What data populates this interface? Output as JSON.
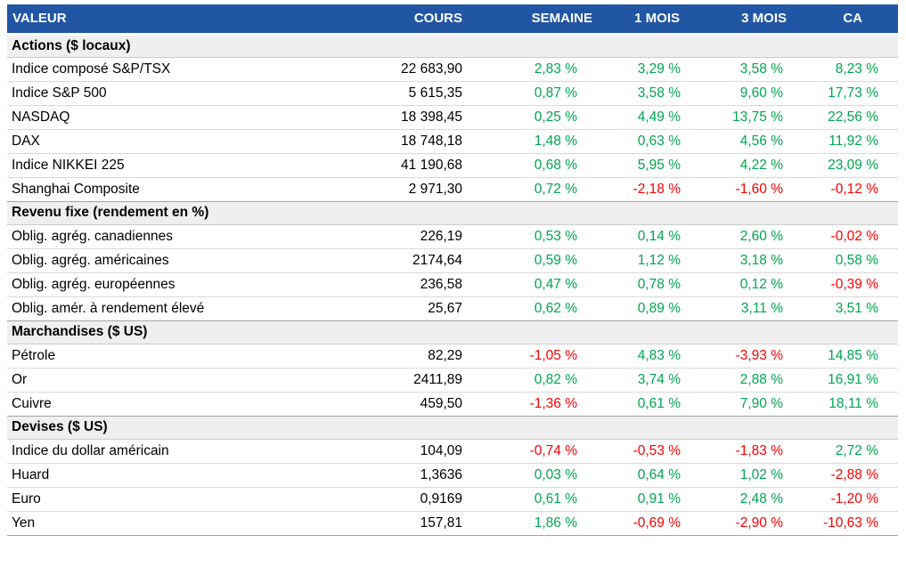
{
  "colors": {
    "header_bg": "#2156a4",
    "header_text": "#ffffff",
    "positive_green": "#00a651",
    "negative_red": "#fe0000",
    "section_bg": "#efefef"
  },
  "chart_data": {
    "type": "table",
    "columns": [
      "VALEUR",
      "COURS",
      "SEMAINE",
      "1 MOIS",
      "3 MOIS",
      "CA"
    ],
    "sections": [
      {
        "label": "Actions ($ locaux)",
        "rows": [
          [
            "Indice composé S&P/TSX",
            "22 683,90",
            "2,83 %",
            "3,29 %",
            "3,58 %",
            "8,23 %"
          ],
          [
            "Indice S&P 500",
            "5 615,35",
            "0,87 %",
            "3,58 %",
            "9,60 %",
            "17,73 %"
          ],
          [
            "NASDAQ",
            "18 398,45",
            "0,25 %",
            "4,49 %",
            "13,75 %",
            "22,56 %"
          ],
          [
            "DAX",
            "18 748,18",
            "1,48 %",
            "0,63 %",
            "4,56 %",
            "11,92 %"
          ],
          [
            "Indice NIKKEI 225",
            "41 190,68",
            "0,68 %",
            "5,95 %",
            "4,22 %",
            "23,09 %"
          ],
          [
            "Shanghai Composite",
            "2 971,30",
            "0,72 %",
            "-2,18 %",
            "-1,60 %",
            "-0,12 %"
          ]
        ]
      },
      {
        "label": "Revenu fixe (rendement en %)",
        "rows": [
          [
            "Oblig. agrég. canadiennes",
            "226,19",
            "0,53 %",
            "0,14 %",
            "2,60 %",
            "-0,02 %"
          ],
          [
            "Oblig. agrég. américaines",
            "2174,64",
            "0,59 %",
            "1,12 %",
            "3,18 %",
            "0,58 %"
          ],
          [
            "Oblig. agrég. européennes",
            "236,58",
            "0,47 %",
            "0,78 %",
            "0,12 %",
            "-0,39 %"
          ],
          [
            "Oblig. amér. à rendement élevé",
            "25,67",
            "0,62 %",
            "0,89 %",
            "3,11 %",
            "3,51 %"
          ]
        ]
      },
      {
        "label": "Marchandises ($ US)",
        "rows": [
          [
            "Pétrole",
            "82,29",
            "-1,05 %",
            "4,83 %",
            "-3,93 %",
            "14,85 %"
          ],
          [
            "Or",
            "2411,89",
            "0,82 %",
            "3,74 %",
            "2,88 %",
            "16,91 %"
          ],
          [
            "Cuivre",
            "459,50",
            "-1,36 %",
            "0,61 %",
            "7,90 %",
            "18,11 %"
          ]
        ]
      },
      {
        "label": "Devises ($ US)",
        "rows": [
          [
            "Indice du dollar américain",
            "104,09",
            "-0,74 %",
            "-0,53 %",
            "-1,83 %",
            "2,72 %"
          ],
          [
            "Huard",
            "1,3636",
            "0,03 %",
            "0,64 %",
            "1,02 %",
            "-2,88 %"
          ],
          [
            "Euro",
            "0,9169",
            "0,61 %",
            "0,91 %",
            "2,48 %",
            "-1,20 %"
          ],
          [
            "Yen",
            "157,81",
            "1,86 %",
            "-0,69 %",
            "-2,90 %",
            "-10,63 %"
          ]
        ]
      }
    ]
  }
}
